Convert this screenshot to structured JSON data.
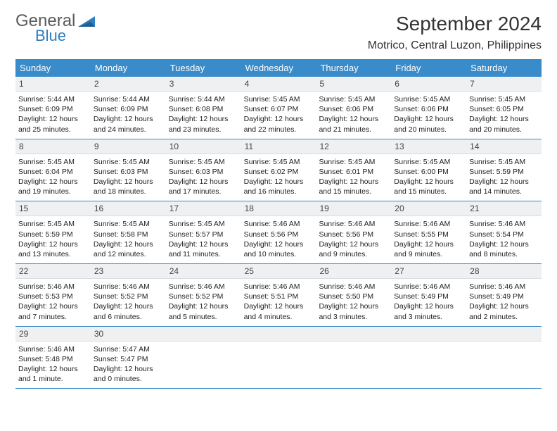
{
  "brand": {
    "word1": "General",
    "word2": "Blue",
    "tri_color": "#2f7ec1"
  },
  "title": "September 2024",
  "subtitle": "Motrico, Central Luzon, Philippines",
  "colors": {
    "header_bg": "#3a8bc9",
    "header_text": "#ffffff",
    "daynum_bg": "#eef0f2",
    "border": "#3a8bc9",
    "body_text": "#222222"
  },
  "typography": {
    "title_size_pt": 21,
    "subtitle_size_pt": 12,
    "dayheader_size_pt": 10,
    "cell_size_pt": 8
  },
  "day_headers": [
    "Sunday",
    "Monday",
    "Tuesday",
    "Wednesday",
    "Thursday",
    "Friday",
    "Saturday"
  ],
  "layout": {
    "columns": 7,
    "rows": 5,
    "first_weekday_index": 0,
    "days_in_month": 30
  },
  "days": [
    {
      "n": 1,
      "sr": "5:44 AM",
      "ss": "6:09 PM",
      "dl": "12 hours and 25 minutes."
    },
    {
      "n": 2,
      "sr": "5:44 AM",
      "ss": "6:09 PM",
      "dl": "12 hours and 24 minutes."
    },
    {
      "n": 3,
      "sr": "5:44 AM",
      "ss": "6:08 PM",
      "dl": "12 hours and 23 minutes."
    },
    {
      "n": 4,
      "sr": "5:45 AM",
      "ss": "6:07 PM",
      "dl": "12 hours and 22 minutes."
    },
    {
      "n": 5,
      "sr": "5:45 AM",
      "ss": "6:06 PM",
      "dl": "12 hours and 21 minutes."
    },
    {
      "n": 6,
      "sr": "5:45 AM",
      "ss": "6:06 PM",
      "dl": "12 hours and 20 minutes."
    },
    {
      "n": 7,
      "sr": "5:45 AM",
      "ss": "6:05 PM",
      "dl": "12 hours and 20 minutes."
    },
    {
      "n": 8,
      "sr": "5:45 AM",
      "ss": "6:04 PM",
      "dl": "12 hours and 19 minutes."
    },
    {
      "n": 9,
      "sr": "5:45 AM",
      "ss": "6:03 PM",
      "dl": "12 hours and 18 minutes."
    },
    {
      "n": 10,
      "sr": "5:45 AM",
      "ss": "6:03 PM",
      "dl": "12 hours and 17 minutes."
    },
    {
      "n": 11,
      "sr": "5:45 AM",
      "ss": "6:02 PM",
      "dl": "12 hours and 16 minutes."
    },
    {
      "n": 12,
      "sr": "5:45 AM",
      "ss": "6:01 PM",
      "dl": "12 hours and 15 minutes."
    },
    {
      "n": 13,
      "sr": "5:45 AM",
      "ss": "6:00 PM",
      "dl": "12 hours and 15 minutes."
    },
    {
      "n": 14,
      "sr": "5:45 AM",
      "ss": "5:59 PM",
      "dl": "12 hours and 14 minutes."
    },
    {
      "n": 15,
      "sr": "5:45 AM",
      "ss": "5:59 PM",
      "dl": "12 hours and 13 minutes."
    },
    {
      "n": 16,
      "sr": "5:45 AM",
      "ss": "5:58 PM",
      "dl": "12 hours and 12 minutes."
    },
    {
      "n": 17,
      "sr": "5:45 AM",
      "ss": "5:57 PM",
      "dl": "12 hours and 11 minutes."
    },
    {
      "n": 18,
      "sr": "5:46 AM",
      "ss": "5:56 PM",
      "dl": "12 hours and 10 minutes."
    },
    {
      "n": 19,
      "sr": "5:46 AM",
      "ss": "5:56 PM",
      "dl": "12 hours and 9 minutes."
    },
    {
      "n": 20,
      "sr": "5:46 AM",
      "ss": "5:55 PM",
      "dl": "12 hours and 9 minutes."
    },
    {
      "n": 21,
      "sr": "5:46 AM",
      "ss": "5:54 PM",
      "dl": "12 hours and 8 minutes."
    },
    {
      "n": 22,
      "sr": "5:46 AM",
      "ss": "5:53 PM",
      "dl": "12 hours and 7 minutes."
    },
    {
      "n": 23,
      "sr": "5:46 AM",
      "ss": "5:52 PM",
      "dl": "12 hours and 6 minutes."
    },
    {
      "n": 24,
      "sr": "5:46 AM",
      "ss": "5:52 PM",
      "dl": "12 hours and 5 minutes."
    },
    {
      "n": 25,
      "sr": "5:46 AM",
      "ss": "5:51 PM",
      "dl": "12 hours and 4 minutes."
    },
    {
      "n": 26,
      "sr": "5:46 AM",
      "ss": "5:50 PM",
      "dl": "12 hours and 3 minutes."
    },
    {
      "n": 27,
      "sr": "5:46 AM",
      "ss": "5:49 PM",
      "dl": "12 hours and 3 minutes."
    },
    {
      "n": 28,
      "sr": "5:46 AM",
      "ss": "5:49 PM",
      "dl": "12 hours and 2 minutes."
    },
    {
      "n": 29,
      "sr": "5:46 AM",
      "ss": "5:48 PM",
      "dl": "12 hours and 1 minute."
    },
    {
      "n": 30,
      "sr": "5:47 AM",
      "ss": "5:47 PM",
      "dl": "12 hours and 0 minutes."
    }
  ],
  "labels": {
    "sunrise": "Sunrise:",
    "sunset": "Sunset:",
    "daylight": "Daylight:"
  }
}
